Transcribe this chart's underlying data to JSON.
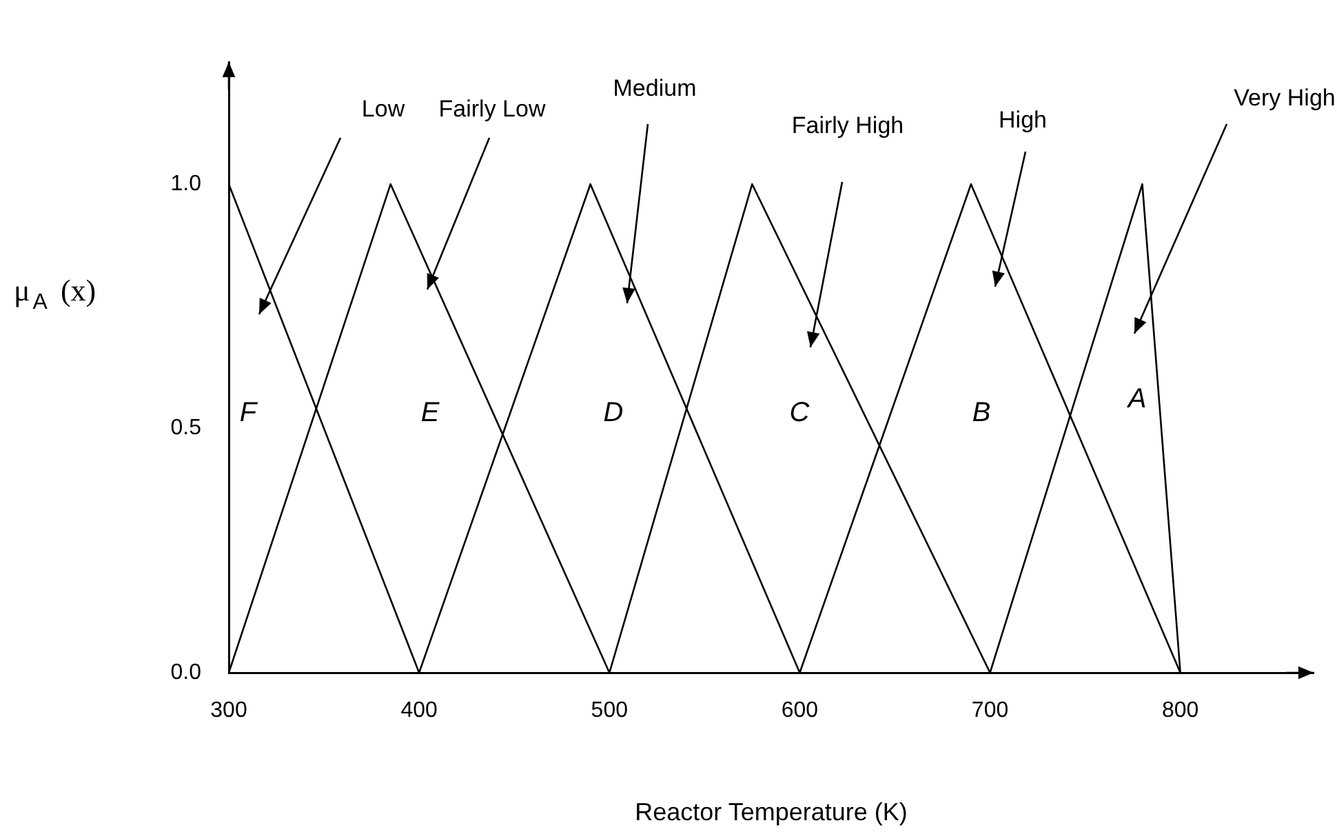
{
  "chart_data": {
    "type": "line",
    "xlabel": "Reactor Temperature (K)",
    "ylabel": "μ$_{A}$ (x)",
    "xlim": [
      300,
      870
    ],
    "xticks": [
      300,
      400,
      500,
      600,
      700,
      800
    ],
    "ylim": [
      0,
      1.25
    ],
    "yticks": [
      {
        "value": 0,
        "label": "0.0"
      },
      {
        "value": 0.5,
        "label": "0.5"
      },
      {
        "value": 1,
        "label": "1.0"
      }
    ],
    "grid": false,
    "legend": false,
    "marker": "none",
    "line_style": "solid",
    "series": [
      {
        "color": "#000000",
        "x": [
          300,
          400
        ],
        "values": [
          1,
          0
        ]
      },
      {
        "color": "#000000",
        "x": [
          300,
          385,
          500
        ],
        "values": [
          0,
          1,
          0
        ]
      },
      {
        "color": "#000000",
        "x": [
          400,
          490,
          600
        ],
        "values": [
          0,
          1,
          0
        ]
      },
      {
        "color": "#000000",
        "x": [
          500,
          575,
          700
        ],
        "values": [
          0,
          1,
          0
        ]
      },
      {
        "color": "#000000",
        "x": [
          600,
          690,
          800
        ],
        "values": [
          0,
          1,
          0
        ]
      },
      {
        "color": "#000000",
        "x": [
          700,
          780,
          800
        ],
        "values": [
          0,
          1,
          0
        ]
      }
    ],
    "annotations": [
      "Low",
      "Fairly Low",
      "Medium",
      "Fairly High",
      "High",
      "Very High",
      "F",
      "E",
      "D",
      "C",
      "B",
      "A"
    ]
  }
}
